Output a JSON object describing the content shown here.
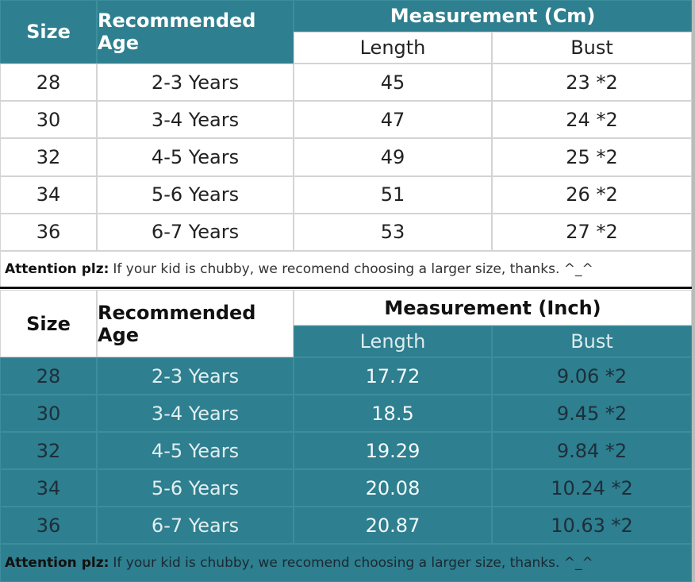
{
  "tables": [
    {
      "header": {
        "size": "Size",
        "age": "Recommended Age",
        "measurement": "Measurement (Cm)",
        "length": "Length",
        "bust": "Bust"
      },
      "rows": [
        [
          "28",
          "2-3 Years",
          "45",
          "23 *2"
        ],
        [
          "30",
          "3-4 Years",
          "47",
          "24 *2"
        ],
        [
          "32",
          "4-5 Years",
          "49",
          "25 *2"
        ],
        [
          "34",
          "5-6 Years",
          "51",
          "26 *2"
        ],
        [
          "36",
          "6-7 Years",
          "53",
          "27 *2"
        ]
      ],
      "note": {
        "label": "Attention plz:",
        "text": "If your kid is chubby, we recomend choosing a larger size, thanks. ^_^"
      }
    },
    {
      "header": {
        "size": "Size",
        "age": "Recommended Age",
        "measurement": "Measurement (Inch)",
        "length": "Length",
        "bust": "Bust"
      },
      "rows": [
        [
          "28",
          "2-3 Years",
          "17.72",
          "9.06 *2"
        ],
        [
          "30",
          "3-4 Years",
          "18.5",
          "9.45 *2"
        ],
        [
          "32",
          "4-5 Years",
          "19.29",
          "9.84 *2"
        ],
        [
          "34",
          "5-6 Years",
          "20.08",
          "10.24 *2"
        ],
        [
          "36",
          "6-7 Years",
          "20.87",
          "10.63 *2"
        ]
      ],
      "note": {
        "label": "Attention plz:",
        "text": "If your kid is chubby, we recomend choosing a larger size, thanks. ^_^"
      }
    }
  ]
}
